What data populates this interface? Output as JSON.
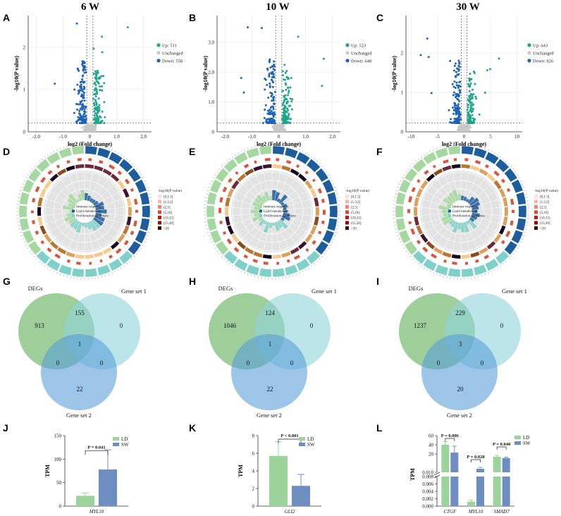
{
  "columns": [
    {
      "header": "6 W"
    },
    {
      "header": "10 W"
    },
    {
      "header": "30 W"
    }
  ],
  "panel_labels": [
    "A",
    "B",
    "C",
    "D",
    "E",
    "F",
    "G",
    "H",
    "I",
    "J",
    "K",
    "L"
  ],
  "colors": {
    "up": "#1fa58c",
    "down": "#1f63b8",
    "unchanged": "#c8c8c8",
    "ld": "#9bd39a",
    "sw": "#6e8ec2",
    "venn_degs": "#7dbf7a",
    "venn_set1": "#8fd3da",
    "venn_set2": "#5a9fd8"
  },
  "chart_data": [
    {
      "type": "scatter",
      "title": "6 W",
      "panel": "A",
      "xlabel": "log2 (Fold change)",
      "ylabel": "-log10(P value)",
      "xticks": [
        "-2.0",
        "-1.0",
        "0",
        "1.0",
        "2.0"
      ],
      "yticks": [
        "0",
        "1",
        "2"
      ],
      "xlim": [
        -2.3,
        2.3
      ],
      "ylim": [
        0,
        2.75
      ],
      "legend": [
        {
          "label": "Up: 511",
          "key": "up"
        },
        {
          "label": "Unchanged",
          "key": "unchanged"
        },
        {
          "label": "Down: 558",
          "key": "down"
        }
      ],
      "up_count": 511,
      "down_count": 558
    },
    {
      "type": "scatter",
      "title": "10 W",
      "panel": "B",
      "xlabel": "log2 (Fold change)",
      "ylabel": "-log10(P value)",
      "xticks": [
        "-2.0",
        "-1.0",
        "0",
        "1.0",
        "2.0"
      ],
      "yticks": [
        "0",
        "1.0",
        "2.0",
        "3.0"
      ],
      "xlim": [
        -2.3,
        2.3
      ],
      "ylim": [
        0,
        3.9
      ],
      "legend": [
        {
          "label": "Up: 523",
          "key": "up"
        },
        {
          "label": "Unchanged",
          "key": "unchanged"
        },
        {
          "label": "Down: 648",
          "key": "down"
        }
      ],
      "up_count": 523,
      "down_count": 648
    },
    {
      "type": "scatter",
      "title": "30 W",
      "panel": "C",
      "xlabel": "log2 (Fold change)",
      "ylabel": "-log10(P value)",
      "xticks": [
        "-10",
        "-5",
        "0",
        "5",
        "10"
      ],
      "yticks": [
        "0",
        "1",
        "2"
      ],
      "xlim": [
        -11,
        11
      ],
      "ylim": [
        0,
        2.95
      ],
      "legend": [
        {
          "label": "Up: 643",
          "key": "up"
        },
        {
          "label": "Unchanged",
          "key": "unchanged"
        },
        {
          "label": "Down: 826",
          "key": "down"
        }
      ],
      "up_count": 643,
      "down_count": 826
    },
    {
      "type": "other",
      "subtype": "venn",
      "panel": "G",
      "sets": [
        "DEGs",
        "Gene set 1",
        "Gene set 2"
      ],
      "regions": {
        "degs_only": "913",
        "degs_set1": "155",
        "set1_only": "0",
        "all": "1",
        "degs_set2": "0",
        "set1_set2": "0",
        "set2_only": "22"
      }
    },
    {
      "type": "other",
      "subtype": "venn",
      "panel": "H",
      "sets": [
        "DEGs",
        "Gene set 1",
        "Gene set 2"
      ],
      "regions": {
        "degs_only": "1046",
        "degs_set1": "124",
        "set1_only": "0",
        "all": "1",
        "degs_set2": "0",
        "set1_set2": "0",
        "set2_only": "22"
      }
    },
    {
      "type": "other",
      "subtype": "venn",
      "panel": "I",
      "sets": [
        "DEGs",
        "Gene set 1",
        "Gene set 2"
      ],
      "regions": {
        "degs_only": "1237",
        "degs_set1": "229",
        "set1_only": "0",
        "all": "3",
        "degs_set2": "0",
        "set1_set2": "0",
        "set2_only": "20"
      }
    },
    {
      "type": "bar",
      "panel": "J",
      "ylabel": "TPM",
      "categories": [
        "MYL10"
      ],
      "ylim": [
        0,
        150
      ],
      "yticks": [
        "0",
        "50",
        "100",
        "150"
      ],
      "series": [
        {
          "name": "LD",
          "values": [
            22
          ]
        },
        {
          "name": "SW",
          "values": [
            78
          ]
        }
      ],
      "errors": {
        "LD": [
          6
        ],
        "SW": [
          42
        ]
      },
      "annotations": [
        "P = 0.041"
      ]
    },
    {
      "type": "bar",
      "panel": "K",
      "ylabel": "TPM",
      "categories": [
        "GLI2"
      ],
      "ylim": [
        0,
        8
      ],
      "yticks": [
        "0",
        "2",
        "4",
        "6",
        "8"
      ],
      "series": [
        {
          "name": "LD",
          "values": [
            5.7
          ]
        },
        {
          "name": "SW",
          "values": [
            2.3
          ]
        }
      ],
      "errors": {
        "LD": [
          1.6
        ],
        "SW": [
          1.3
        ]
      },
      "annotations": [
        "P < 0.001"
      ]
    },
    {
      "type": "bar",
      "panel": "L",
      "ylabel": "TPM",
      "broken_axis": true,
      "categories": [
        "CTGF",
        "MYL10",
        "SMAD7"
      ],
      "yticks_upper": [
        "0.010",
        "20",
        "40",
        "60"
      ],
      "yticks_lower": [
        "0.000",
        "0.002",
        "0.004",
        "0.006",
        "0.008"
      ],
      "series": [
        {
          "name": "LD",
          "values": [
            40,
            0.0012,
            14
          ]
        },
        {
          "name": "SW",
          "values": [
            23,
            0.0095,
            11
          ]
        }
      ],
      "errors": {
        "LD": [
          7,
          0.0004,
          3
        ],
        "SW": [
          14,
          0.0008,
          2
        ]
      },
      "annotations": [
        "P = 0.006",
        "P = 0.028",
        "P = 0.040"
      ]
    }
  ],
  "circos_legend": {
    "title": "-log10(P value)",
    "bins": [
      "[0,1.3]",
      "(1.3,2]",
      "(2,5]",
      "(5,10]",
      "(10,15]",
      "(15,20]",
      ">20"
    ],
    "bin_colors": [
      "#fde0d9",
      "#fbb4a3",
      "#f4826b",
      "#e0442c",
      "#bb1e14",
      "#8c0c0c",
      "#4a0505"
    ],
    "categories": [
      "Immune response",
      "Lipid metabolism",
      "Proliferation/apoptosis"
    ],
    "category_colors": [
      "#a4d8a0",
      "#1d5d9e",
      "#7fd0c8"
    ]
  }
}
